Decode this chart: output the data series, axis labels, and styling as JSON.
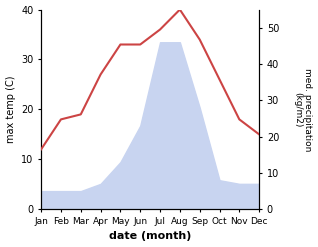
{
  "months": [
    "Jan",
    "Feb",
    "Mar",
    "Apr",
    "May",
    "Jun",
    "Jul",
    "Aug",
    "Sep",
    "Oct",
    "Nov",
    "Dec"
  ],
  "temperature": [
    12,
    18,
    19,
    27,
    33,
    33,
    36,
    40,
    34,
    26,
    18,
    15
  ],
  "precipitation": [
    5,
    5,
    5,
    7,
    13,
    23,
    46,
    46,
    28,
    8,
    7,
    7
  ],
  "temp_color": "#cc4444",
  "precip_fill_color": "#c8d4f0",
  "ylabel_left": "max temp (C)",
  "ylabel_right": "med. precipitation\n(kg/m2)",
  "xlabel": "date (month)",
  "ylim_left": [
    0,
    40
  ],
  "ylim_right": [
    0,
    55
  ],
  "yticks_left": [
    0,
    10,
    20,
    30,
    40
  ],
  "yticks_right": [
    0,
    10,
    20,
    30,
    40,
    50
  ],
  "background_color": "#ffffff",
  "figsize": [
    3.18,
    2.47
  ],
  "dpi": 100
}
